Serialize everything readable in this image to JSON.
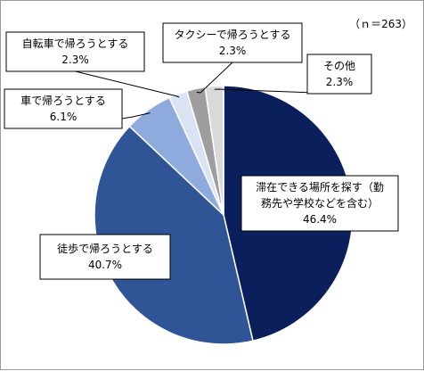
{
  "chart_data": {
    "type": "pie",
    "note": "（ｎ＝263）",
    "start_angle_deg": 0,
    "direction": "clockwise",
    "slices": [
      {
        "lines": [
          "滞在できる場所を探す（勤",
          "務先や学校などを含む）"
        ],
        "value": 46.4,
        "value_label": "46.4%",
        "color": "#0a1f5c"
      },
      {
        "lines": [
          "徒歩で帰ろうとする"
        ],
        "value": 40.7,
        "value_label": "40.7%",
        "color": "#2f5597"
      },
      {
        "lines": [
          "車で帰ろうとする"
        ],
        "value": 6.1,
        "value_label": "6.1%",
        "color": "#8faadc"
      },
      {
        "lines": [
          "自転車で帰ろうとする"
        ],
        "value": 2.3,
        "value_label": "2.3%",
        "color": "#dae3f3"
      },
      {
        "lines": [
          "タクシーで帰ろうとする"
        ],
        "value": 2.3,
        "value_label": "2.3%",
        "color": "#9e9e9e"
      },
      {
        "lines": [
          "その他"
        ],
        "value": 2.3,
        "value_label": "2.3%",
        "color": "#d9d9d9"
      }
    ]
  }
}
